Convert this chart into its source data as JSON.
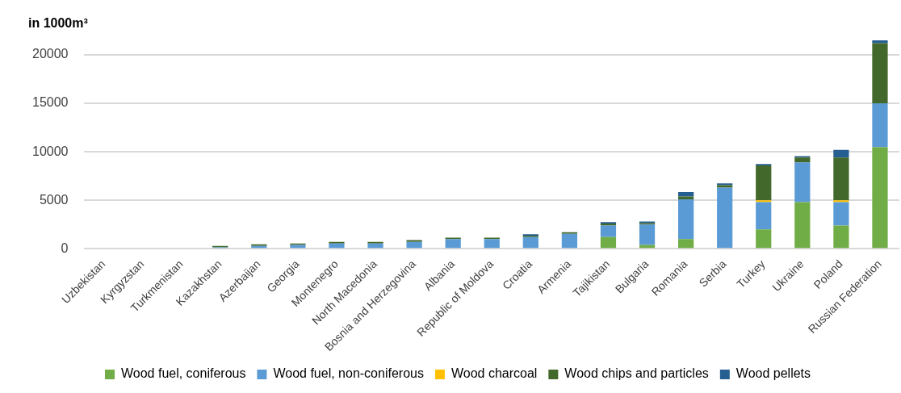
{
  "chart_data": {
    "type": "bar",
    "stacked": true,
    "ylabel": "in 1000m³",
    "categories": [
      "Uzbekistan",
      "Kyrgyzstan",
      "Turkmenistan",
      "Kazakhstan",
      "Azerbaijan",
      "Georgia",
      "Montenegro",
      "North Macedonia",
      "Bosnia and Herzegovina",
      "Albania",
      "Republic of Moldova",
      "Croatia",
      "Armenia",
      "Tajikistan",
      "Bulgaria",
      "Romania",
      "Serbia",
      "Turkey",
      "Ukraine",
      "Poland",
      "Russian Federation"
    ],
    "series": [
      {
        "name": "Wood fuel, coniferous",
        "color": "#70ad47",
        "values": [
          0,
          0,
          0,
          0,
          0,
          0,
          0,
          0,
          0,
          0,
          0,
          0,
          0,
          1200,
          400,
          1000,
          0,
          2000,
          4800,
          2400,
          10500
        ]
      },
      {
        "name": "Wood fuel, non-coniferous",
        "color": "#5b9bd5",
        "values": [
          0,
          0,
          0,
          150,
          300,
          400,
          550,
          550,
          700,
          1000,
          1000,
          1200,
          1550,
          1200,
          2100,
          4100,
          6300,
          2800,
          4100,
          2400,
          4500
        ]
      },
      {
        "name": "Wood charcoal",
        "color": "#ffc000",
        "values": [
          0,
          0,
          0,
          0,
          0,
          0,
          0,
          0,
          0,
          0,
          0,
          0,
          0,
          0,
          0,
          0,
          0,
          200,
          0,
          200,
          0
        ]
      },
      {
        "name": "Wood chips and particles",
        "color": "#43682b",
        "values": [
          0,
          0,
          0,
          150,
          150,
          150,
          150,
          150,
          200,
          150,
          150,
          150,
          150,
          200,
          150,
          300,
          250,
          3600,
          500,
          4400,
          6200
        ]
      },
      {
        "name": "Wood pellets",
        "color": "#255e91",
        "values": [
          0,
          0,
          0,
          0,
          0,
          0,
          0,
          0,
          0,
          0,
          0,
          150,
          0,
          150,
          150,
          450,
          200,
          150,
          150,
          800,
          300
        ]
      }
    ],
    "ylim": [
      0,
      21500
    ],
    "yticks": [
      0,
      5000,
      10000,
      15000,
      20000
    ],
    "grid": "y",
    "legend": "bottom"
  }
}
